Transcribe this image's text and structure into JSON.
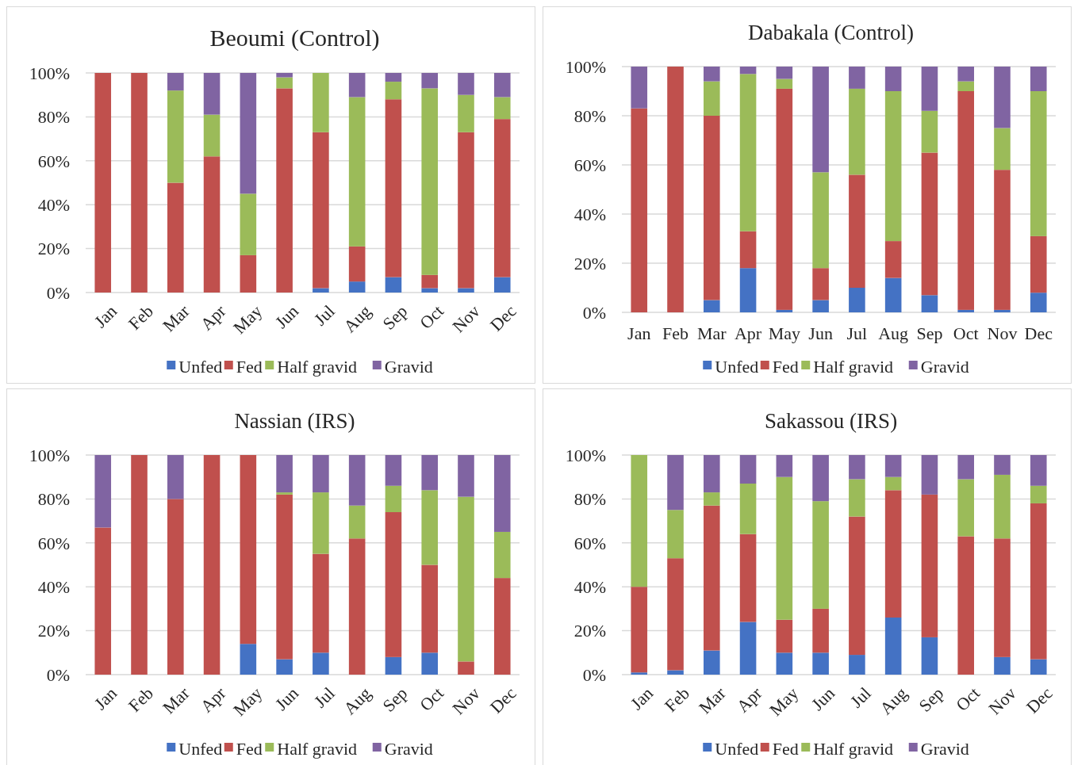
{
  "chart_data": [
    {
      "type": "bar",
      "title": "Beoumi (Control)",
      "stacked": true,
      "legend": "bottom",
      "grid": "y",
      "categories": [
        "Jan",
        "Feb",
        "Mar",
        "Apr",
        "May",
        "Jun",
        "Jul",
        "Aug",
        "Sep",
        "Oct",
        "Nov",
        "Dec"
      ],
      "ylim": [
        0,
        100
      ],
      "yticks": [
        {
          "value": 0,
          "label": "0%"
        },
        {
          "value": 20,
          "label": "20%"
        },
        {
          "value": 40,
          "label": "40%"
        },
        {
          "value": 60,
          "label": "60%"
        },
        {
          "value": 80,
          "label": "80%"
        },
        {
          "value": 100,
          "label": "100%"
        }
      ],
      "series": [
        {
          "name": "Unfed",
          "color": "#4472c4",
          "values": [
            0,
            0,
            0,
            0,
            0,
            0,
            2,
            5,
            7,
            2,
            2,
            7
          ]
        },
        {
          "name": "Fed",
          "color": "#c0504d",
          "values": [
            100,
            100,
            50,
            62,
            17,
            93,
            71,
            16,
            81,
            6,
            71,
            72
          ]
        },
        {
          "name": "Half gravid",
          "color": "#9bbb59",
          "values": [
            0,
            0,
            42,
            19,
            28,
            5,
            27,
            68,
            8,
            85,
            17,
            10
          ]
        },
        {
          "name": "Gravid",
          "color": "#8064a2",
          "values": [
            0,
            0,
            8,
            19,
            55,
            2,
            0,
            11,
            4,
            7,
            10,
            11
          ]
        }
      ]
    },
    {
      "type": "bar",
      "title": "Dabakala (Control)",
      "stacked": true,
      "legend": "bottom",
      "grid": "y",
      "categories": [
        "Jan",
        "Feb",
        "Mar",
        "Apr",
        "May",
        "Jun",
        "Jul",
        "Aug",
        "Sep",
        "Oct",
        "Nov",
        "Dec"
      ],
      "ylim": [
        0,
        100
      ],
      "yticks": [
        {
          "value": 0,
          "label": "0%"
        },
        {
          "value": 20,
          "label": "20%"
        },
        {
          "value": 40,
          "label": "40%"
        },
        {
          "value": 60,
          "label": "60%"
        },
        {
          "value": 80,
          "label": "80%"
        },
        {
          "value": 100,
          "label": "100%"
        }
      ],
      "series": [
        {
          "name": "Unfed",
          "color": "#4472c4",
          "values": [
            0,
            0,
            5,
            18,
            1,
            5,
            10,
            14,
            7,
            1,
            1,
            8
          ]
        },
        {
          "name": "Fed",
          "color": "#c0504d",
          "values": [
            83,
            100,
            75,
            15,
            90,
            13,
            46,
            15,
            58,
            89,
            57,
            23
          ]
        },
        {
          "name": "Half gravid",
          "color": "#9bbb59",
          "values": [
            0,
            0,
            14,
            64,
            4,
            39,
            35,
            61,
            17,
            4,
            17,
            59
          ]
        },
        {
          "name": "Gravid",
          "color": "#8064a2",
          "values": [
            17,
            0,
            6,
            3,
            5,
            43,
            9,
            10,
            18,
            6,
            25,
            10
          ]
        }
      ]
    },
    {
      "type": "bar",
      "title": "Nassian (IRS)",
      "stacked": true,
      "legend": "bottom",
      "grid": "y",
      "categories": [
        "Jan",
        "Feb",
        "Mar",
        "Apr",
        "May",
        "Jun",
        "Jul",
        "Aug",
        "Sep",
        "Oct",
        "Nov",
        "Dec"
      ],
      "ylim": [
        0,
        100
      ],
      "yticks": [
        {
          "value": 0,
          "label": "0%"
        },
        {
          "value": 20,
          "label": "20%"
        },
        {
          "value": 40,
          "label": "40%"
        },
        {
          "value": 60,
          "label": "60%"
        },
        {
          "value": 80,
          "label": "80%"
        },
        {
          "value": 100,
          "label": "100%"
        }
      ],
      "series": [
        {
          "name": "Unfed",
          "color": "#4472c4",
          "values": [
            0,
            0,
            0,
            0,
            14,
            7,
            10,
            0,
            8,
            10,
            0,
            0
          ]
        },
        {
          "name": "Fed",
          "color": "#c0504d",
          "values": [
            67,
            100,
            80,
            100,
            86,
            75,
            45,
            62,
            66,
            40,
            6,
            44
          ]
        },
        {
          "name": "Half gravid",
          "color": "#9bbb59",
          "values": [
            0,
            0,
            0,
            0,
            0,
            1,
            28,
            15,
            12,
            34,
            75,
            21
          ]
        },
        {
          "name": "Gravid",
          "color": "#8064a2",
          "values": [
            33,
            0,
            20,
            0,
            0,
            17,
            17,
            23,
            14,
            16,
            19,
            35
          ]
        }
      ]
    },
    {
      "type": "bar",
      "title": "Sakassou (IRS)",
      "stacked": true,
      "legend": "bottom",
      "grid": "y",
      "categories": [
        "Jan",
        "Feb",
        "Mar",
        "Apr",
        "May",
        "Jun",
        "Jul",
        "Aug",
        "Sep",
        "Oct",
        "Nov",
        "Dec"
      ],
      "ylim": [
        0,
        100
      ],
      "yticks": [
        {
          "value": 0,
          "label": "0%"
        },
        {
          "value": 20,
          "label": "20%"
        },
        {
          "value": 40,
          "label": "40%"
        },
        {
          "value": 60,
          "label": "60%"
        },
        {
          "value": 80,
          "label": "80%"
        },
        {
          "value": 100,
          "label": "100%"
        }
      ],
      "series": [
        {
          "name": "Unfed",
          "color": "#4472c4",
          "values": [
            1,
            2,
            11,
            24,
            10,
            10,
            9,
            26,
            17,
            0,
            8,
            7
          ]
        },
        {
          "name": "Fed",
          "color": "#c0504d",
          "values": [
            39,
            51,
            66,
            40,
            15,
            20,
            63,
            58,
            65,
            63,
            54,
            71
          ]
        },
        {
          "name": "Half gravid",
          "color": "#9bbb59",
          "values": [
            60,
            22,
            6,
            23,
            65,
            49,
            17,
            6,
            0,
            26,
            29,
            8
          ]
        },
        {
          "name": "Gravid",
          "color": "#8064a2",
          "values": [
            0,
            25,
            17,
            13,
            10,
            21,
            11,
            10,
            18,
            11,
            9,
            14
          ]
        }
      ]
    }
  ]
}
